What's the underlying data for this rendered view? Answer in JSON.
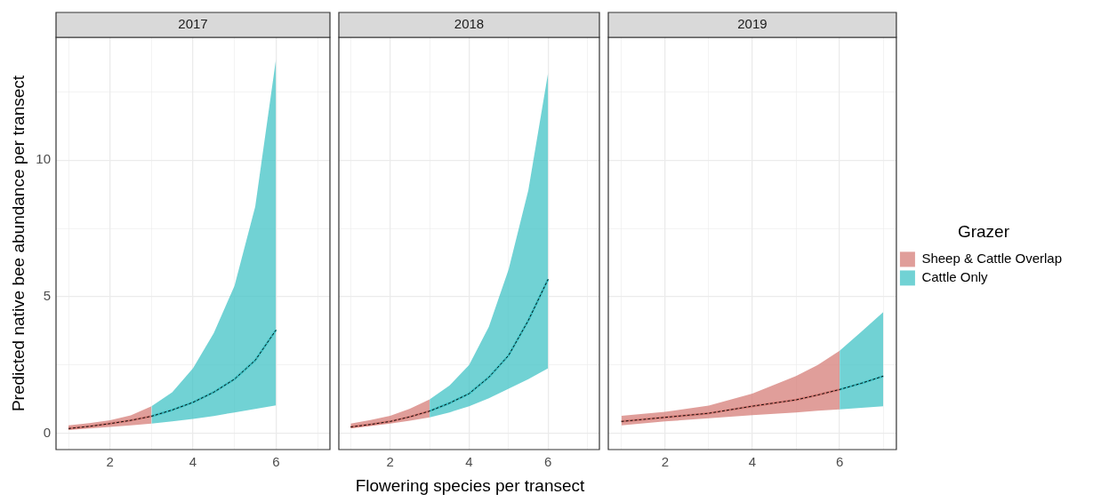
{
  "chart_data": [
    {
      "type": "line",
      "title": "2017",
      "ylabel": "Predicted native bee abundance per transect",
      "xlim": [
        0.7,
        7.3
      ],
      "ylim": [
        -0.6,
        14.5
      ],
      "xticks": [
        {
          "value": 1,
          "label": null
        },
        2,
        {
          "value": 3,
          "label": null
        },
        4,
        {
          "value": 5,
          "label": null
        },
        6,
        {
          "value": 7,
          "label": null
        }
      ],
      "yticks": [
        0,
        {
          "value": 2.5,
          "label": null
        },
        5,
        {
          "value": 7.5,
          "label": null
        },
        10,
        {
          "value": 12.5,
          "label": null
        }
      ],
      "grid": true,
      "series": [
        {
          "color": "#d57b75",
          "x": [
            1,
            1.5,
            2,
            2.5,
            3
          ],
          "values": [
            0.17,
            0.25,
            0.35,
            0.47,
            0.62
          ],
          "lower": [
            0.12,
            0.17,
            0.23,
            0.29,
            0.35
          ],
          "upper": [
            0.29,
            0.37,
            0.47,
            0.65,
            0.99
          ]
        },
        {
          "color": "#3dc1c5",
          "x": [
            3,
            3.5,
            4,
            4.5,
            5,
            5.5,
            6
          ],
          "values": [
            0.62,
            0.85,
            1.13,
            1.5,
            1.98,
            2.67,
            3.78
          ],
          "lower": [
            0.35,
            0.43,
            0.52,
            0.63,
            0.76,
            0.89,
            1.02
          ],
          "upper": [
            0.99,
            1.5,
            2.38,
            3.66,
            5.4,
            8.3,
            13.7
          ]
        },
        {
          "color": "#000000",
          "line_style": "dashed",
          "x": [
            1,
            1.5,
            2,
            2.5,
            3,
            3.5,
            4,
            4.5,
            5,
            5.5,
            6
          ],
          "values": [
            0.17,
            0.25,
            0.35,
            0.47,
            0.62,
            0.85,
            1.13,
            1.5,
            1.98,
            2.67,
            3.78
          ]
        }
      ]
    },
    {
      "type": "line",
      "title": "2018",
      "xlabel": "Flowering species per transect",
      "xlim": [
        0.7,
        7.3
      ],
      "ylim": [
        -0.6,
        14.5
      ],
      "xticks": [
        {
          "value": 1,
          "label": null
        },
        2,
        {
          "value": 3,
          "label": null
        },
        4,
        {
          "value": 5,
          "label": null
        },
        6,
        {
          "value": 7,
          "label": null
        }
      ],
      "yticks": [
        0,
        {
          "value": 2.5,
          "label": null
        },
        5,
        {
          "value": 7.5,
          "label": null
        },
        10,
        {
          "value": 12.5,
          "label": null
        }
      ],
      "tick_labels": "x",
      "grid": true,
      "series": [
        {
          "color": "#d57b75",
          "x": [
            1,
            1.5,
            2,
            2.5,
            3
          ],
          "values": [
            0.23,
            0.32,
            0.43,
            0.6,
            0.81
          ],
          "lower": [
            0.17,
            0.26,
            0.35,
            0.46,
            0.58
          ],
          "upper": [
            0.35,
            0.48,
            0.64,
            0.9,
            1.24
          ]
        },
        {
          "color": "#3dc1c5",
          "x": [
            3,
            3.5,
            4,
            4.5,
            5,
            5.5,
            6
          ],
          "values": [
            0.81,
            1.1,
            1.45,
            2.05,
            2.85,
            4.13,
            5.64
          ],
          "lower": [
            0.58,
            0.76,
            0.99,
            1.28,
            1.63,
            1.98,
            2.38
          ],
          "upper": [
            1.24,
            1.74,
            2.5,
            3.9,
            6.0,
            8.9,
            13.2
          ]
        },
        {
          "color": "#000000",
          "line_style": "dashed",
          "x": [
            1,
            1.5,
            2,
            2.5,
            3,
            3.5,
            4,
            4.5,
            5,
            5.5,
            6
          ],
          "values": [
            0.23,
            0.32,
            0.43,
            0.6,
            0.81,
            1.1,
            1.45,
            2.05,
            2.85,
            4.13,
            5.64
          ]
        }
      ]
    },
    {
      "type": "line",
      "title": "2019",
      "legend_title": "Grazer",
      "legend": "right",
      "xlim": [
        0.7,
        7.3
      ],
      "ylim": [
        -0.6,
        14.5
      ],
      "xticks": [
        {
          "value": 1,
          "label": null
        },
        2,
        {
          "value": 3,
          "label": null
        },
        4,
        {
          "value": 5,
          "label": null
        },
        6,
        {
          "value": 7,
          "label": null
        }
      ],
      "yticks": [
        0,
        {
          "value": 2.5,
          "label": null
        },
        5,
        {
          "value": 7.5,
          "label": null
        },
        10,
        {
          "value": 12.5,
          "label": null
        }
      ],
      "tick_labels": "x",
      "grid": true,
      "series": [
        {
          "name": "Sheep & Cattle Overlap",
          "color": "#d57b75",
          "x": [
            1,
            2,
            3,
            4,
            5,
            5.5,
            6
          ],
          "values": [
            0.43,
            0.58,
            0.73,
            0.99,
            1.22,
            1.4,
            1.6
          ],
          "lower": [
            0.29,
            0.43,
            0.55,
            0.66,
            0.76,
            0.82,
            0.87
          ],
          "upper": [
            0.64,
            0.78,
            1.01,
            1.45,
            2.09,
            2.5,
            3.02
          ]
        },
        {
          "name": "Cattle Only",
          "color": "#3dc1c5",
          "x": [
            6,
            6.5,
            7
          ],
          "values": [
            1.6,
            1.83,
            2.09
          ],
          "lower": [
            0.87,
            0.93,
            0.99
          ],
          "upper": [
            3.02,
            3.72,
            4.44
          ]
        },
        {
          "color": "#000000",
          "line_style": "dashed",
          "x": [
            1,
            2,
            3,
            4,
            5,
            5.5,
            6,
            6.5,
            7
          ],
          "values": [
            0.43,
            0.58,
            0.73,
            0.99,
            1.22,
            1.4,
            1.6,
            1.83,
            2.09
          ]
        }
      ]
    }
  ]
}
